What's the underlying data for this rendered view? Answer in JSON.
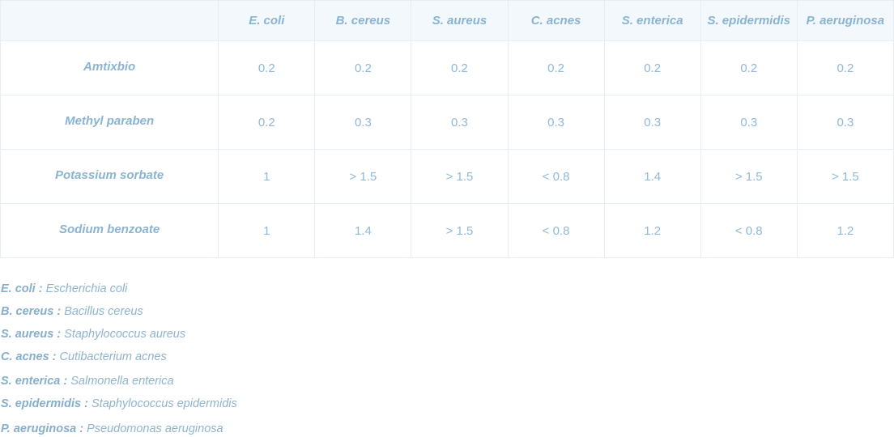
{
  "table": {
    "columns": [
      "E. coli",
      "B. cereus",
      "S. aureus",
      "C. acnes",
      "S. enterica",
      "S. epidermidis",
      "P. aeruginosa"
    ],
    "rows": [
      {
        "label": "Amtixbio",
        "cells": [
          "0.2",
          "0.2",
          "0.2",
          "0.2",
          "0.2",
          "0.2",
          "0.2"
        ]
      },
      {
        "label": "Methyl paraben",
        "cells": [
          "0.2",
          "0.3",
          "0.3",
          "0.3",
          "0.3",
          "0.3",
          "0.3"
        ]
      },
      {
        "label": "Potassium sorbate",
        "cells": [
          "1",
          "> 1.5",
          "> 1.5",
          "< 0.8",
          "1.4",
          "> 1.5",
          "> 1.5"
        ]
      },
      {
        "label": "Sodium benzoate",
        "cells": [
          "1",
          "1.4",
          "> 1.5",
          "< 0.8",
          "1.2",
          "< 0.8",
          "1.2"
        ]
      }
    ]
  },
  "legend": [
    {
      "term": "E. coli :",
      "definition": "Escherichia coli"
    },
    {
      "term": "B. cereus :",
      "definition": "Bacillus cereus"
    },
    {
      "term": "S. aureus :",
      "definition": "Staphylococcus aureus"
    },
    {
      "term": "C. acnes :",
      "definition": "Cutibacterium acnes"
    },
    {
      "term": "S. enterica :",
      "definition": "Salmonella enterica"
    },
    {
      "term": "S. epidermidis :",
      "definition": "Staphylococcus epidermidis"
    },
    {
      "term": "P. aeruginosa :",
      "definition": "Pseudomonas aeruginosa"
    }
  ]
}
